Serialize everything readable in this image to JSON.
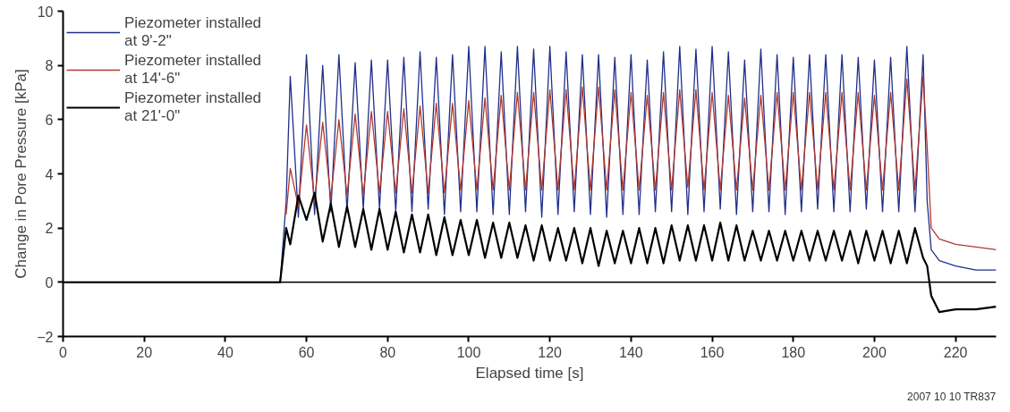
{
  "chart_data": {
    "type": "line",
    "xlabel": "Elapsed time [s]",
    "ylabel": "Change in Pore Pressure [kPa]",
    "annotations": [
      "2007 10 10 TR837"
    ],
    "xlim": [
      0,
      230
    ],
    "ylim": [
      -2,
      10
    ],
    "xticks": [
      0,
      20,
      40,
      60,
      80,
      100,
      120,
      140,
      160,
      180,
      200,
      220
    ],
    "yticks": [
      -2,
      0,
      2,
      4,
      6,
      8,
      10
    ],
    "grid": false,
    "legend": "top left",
    "line_style": "solid",
    "ref_lines": [
      {
        "axis": "y",
        "value": 0,
        "color": "#000000"
      }
    ],
    "x": [
      0,
      50,
      53.5,
      55,
      56,
      58,
      60,
      62,
      64,
      66,
      68,
      70,
      72,
      74,
      76,
      78,
      80,
      82,
      84,
      86,
      88,
      90,
      92,
      94,
      96,
      98,
      100,
      102,
      104,
      106,
      108,
      110,
      112,
      114,
      116,
      118,
      120,
      122,
      124,
      126,
      128,
      130,
      132,
      134,
      136,
      138,
      140,
      142,
      144,
      146,
      148,
      150,
      152,
      154,
      156,
      158,
      160,
      162,
      164,
      166,
      168,
      170,
      172,
      174,
      176,
      178,
      180,
      182,
      184,
      186,
      188,
      190,
      192,
      194,
      196,
      198,
      200,
      202,
      204,
      206,
      208,
      210,
      212,
      213,
      214,
      216,
      220,
      225,
      230
    ],
    "series": [
      {
        "name": "Piezometer installed\nat 9'-2\"",
        "color": "#1f2f8a",
        "values": [
          0,
          0,
          0,
          3.0,
          7.6,
          2.4,
          8.4,
          2.5,
          8.0,
          2.6,
          8.4,
          2.6,
          8.1,
          2.7,
          8.2,
          2.7,
          8.2,
          2.6,
          8.3,
          2.6,
          8.5,
          2.7,
          8.3,
          2.5,
          8.4,
          2.6,
          8.7,
          2.6,
          8.7,
          2.5,
          8.5,
          2.5,
          8.7,
          2.6,
          8.6,
          2.4,
          8.7,
          2.5,
          8.5,
          2.6,
          8.4,
          2.5,
          8.4,
          2.4,
          8.3,
          2.5,
          8.4,
          2.5,
          8.2,
          2.6,
          8.5,
          2.6,
          8.7,
          2.5,
          8.6,
          2.6,
          8.7,
          2.7,
          8.5,
          2.5,
          8.2,
          2.6,
          8.6,
          2.6,
          8.4,
          2.5,
          8.3,
          2.6,
          8.4,
          2.7,
          8.4,
          2.6,
          8.4,
          2.6,
          8.3,
          2.7,
          8.2,
          2.6,
          8.3,
          2.6,
          8.7,
          2.6,
          8.4,
          3.0,
          1.2,
          0.8,
          0.6,
          0.45,
          0.45
        ]
      },
      {
        "name": "Piezometer installed\nat 14'-6\"",
        "color": "#b03a2e",
        "x": [
          55,
          56,
          58,
          60,
          62,
          64,
          66,
          68,
          70,
          72,
          74,
          76,
          78,
          80,
          82,
          84,
          86,
          88,
          90,
          92,
          94,
          96,
          98,
          100,
          102,
          104,
          106,
          108,
          110,
          112,
          114,
          116,
          118,
          120,
          122,
          124,
          126,
          128,
          130,
          132,
          134,
          136,
          138,
          140,
          142,
          144,
          146,
          148,
          150,
          152,
          154,
          156,
          158,
          160,
          162,
          164,
          166,
          168,
          170,
          172,
          174,
          176,
          178,
          180,
          182,
          184,
          186,
          188,
          190,
          192,
          194,
          196,
          198,
          200,
          202,
          204,
          206,
          208,
          210,
          212,
          213,
          214,
          216,
          220,
          225,
          230
        ],
        "values": [
          2.5,
          4.2,
          2.8,
          5.8,
          3.0,
          5.9,
          3.1,
          6.0,
          3.2,
          6.2,
          3.2,
          6.3,
          3.3,
          6.3,
          3.3,
          6.4,
          3.3,
          6.5,
          3.3,
          6.6,
          3.3,
          6.6,
          3.4,
          6.7,
          3.4,
          6.8,
          3.4,
          6.9,
          3.4,
          7.0,
          3.4,
          7.0,
          3.4,
          7.1,
          3.4,
          7.1,
          3.4,
          7.2,
          3.4,
          7.2,
          3.4,
          7.1,
          3.4,
          7.0,
          3.4,
          6.9,
          3.4,
          7.0,
          3.4,
          7.1,
          3.5,
          7.1,
          3.4,
          7.0,
          3.4,
          6.9,
          3.4,
          6.8,
          3.4,
          6.9,
          3.4,
          7.0,
          3.4,
          7.0,
          3.4,
          7.0,
          3.4,
          7.0,
          3.4,
          7.0,
          3.4,
          7.0,
          3.4,
          6.9,
          3.4,
          7.0,
          3.4,
          7.5,
          3.4,
          7.6,
          5.0,
          2.0,
          1.6,
          1.4,
          1.3,
          1.2
        ]
      },
      {
        "name": "Piezometer installed\nat 21'-0\"",
        "color": "#000000",
        "values": [
          0,
          0,
          0,
          2.0,
          1.4,
          3.2,
          2.3,
          3.3,
          1.5,
          2.9,
          1.3,
          2.8,
          1.3,
          2.7,
          1.2,
          2.7,
          1.2,
          2.6,
          1.1,
          2.5,
          1.1,
          2.5,
          1.0,
          2.4,
          1.0,
          2.3,
          1.0,
          2.3,
          0.9,
          2.2,
          0.9,
          2.2,
          0.9,
          2.1,
          0.8,
          2.1,
          0.8,
          2.0,
          0.8,
          2.0,
          0.7,
          2.0,
          0.6,
          1.9,
          0.7,
          1.9,
          0.7,
          2.0,
          0.7,
          2.0,
          0.7,
          2.1,
          0.8,
          2.1,
          0.8,
          2.1,
          0.8,
          2.2,
          0.8,
          2.1,
          0.8,
          1.9,
          0.8,
          1.9,
          0.8,
          1.9,
          0.8,
          1.9,
          0.8,
          1.9,
          0.8,
          1.9,
          0.8,
          1.9,
          0.7,
          1.9,
          0.8,
          1.9,
          0.7,
          1.9,
          0.7,
          2.0,
          0.9,
          0.6,
          -0.5,
          -1.1,
          -1.0,
          -1.0,
          -0.9
        ]
      }
    ]
  }
}
